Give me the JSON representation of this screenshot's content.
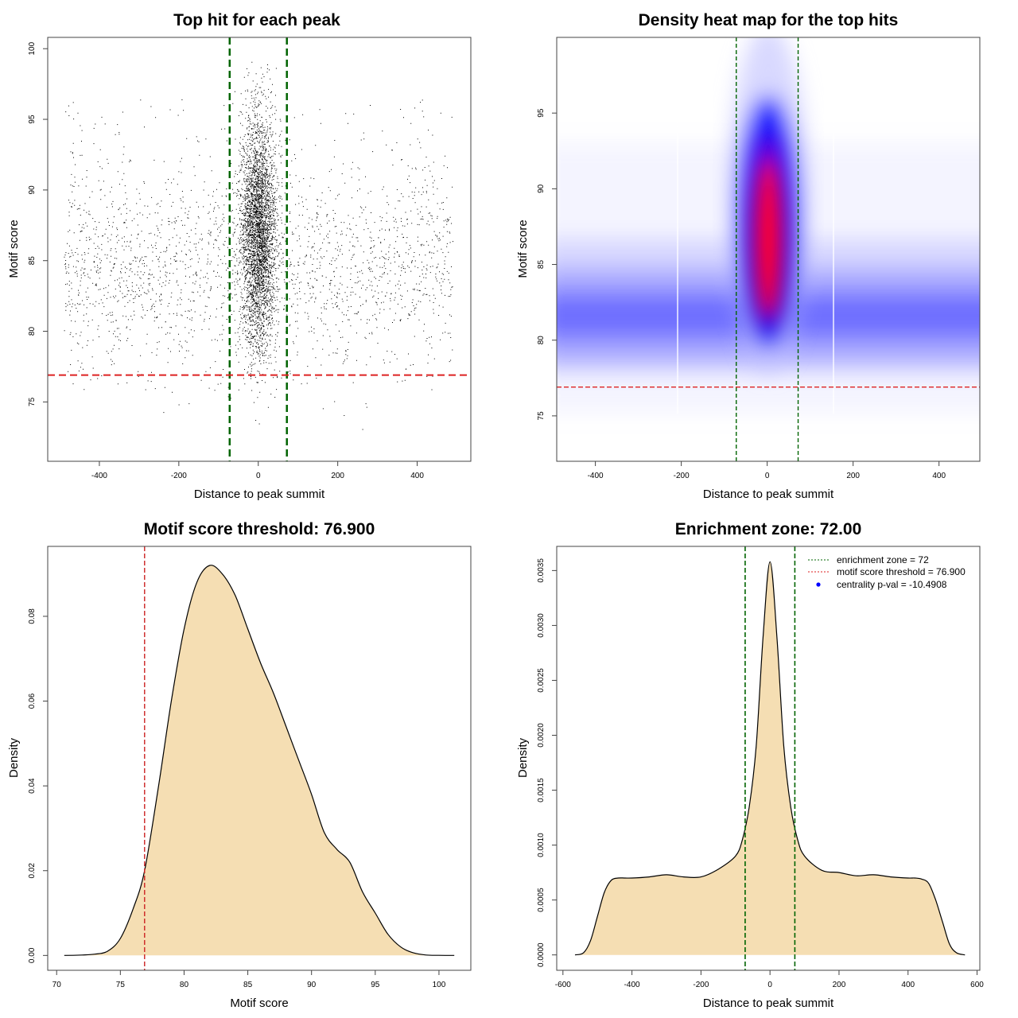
{
  "chart_data": [
    {
      "id": "scatter",
      "type": "scatter",
      "title": "Top hit for each peak",
      "xlabel": "Distance to peak summit",
      "ylabel": "Motif score",
      "xlim": [
        -530,
        535
      ],
      "ylim": [
        70.8,
        100.8
      ],
      "xticks": [
        -400,
        -200,
        0,
        200,
        400
      ],
      "yticks": [
        75,
        80,
        85,
        90,
        95,
        100
      ],
      "vlines": {
        "values": [
          -72,
          72
        ],
        "color": "#006400"
      },
      "hline": {
        "value": 76.9,
        "color": "#dd2222"
      },
      "point_model": {
        "n_background": 19000,
        "background_x_range": [
          -490,
          490
        ],
        "background_score_mode": 82,
        "n_central": 7000,
        "central_x_sd": 22,
        "central_score_mean": 87,
        "central_score_sd": 4
      }
    },
    {
      "id": "heatmap",
      "type": "heatmap",
      "title": "Density heat map for the top hits",
      "xlabel": "Distance to peak summit",
      "ylabel": "Motif score",
      "xlim": [
        -490,
        495
      ],
      "ylim": [
        72,
        100
      ],
      "xticks": [
        -400,
        -200,
        0,
        200,
        400
      ],
      "yticks": [
        75,
        80,
        85,
        90,
        95
      ],
      "vlines": {
        "values": [
          -72,
          72
        ],
        "color": "#006400"
      },
      "hline": {
        "value": 76.9,
        "color": "#dd2222"
      },
      "colors": [
        "#ffffff",
        "#0000ff",
        "#ff0000"
      ]
    },
    {
      "id": "density_score",
      "type": "area",
      "title": "Motif score threshold: 76.900",
      "xlabel": "Motif score",
      "ylabel": "Density",
      "xlim": [
        69.3,
        102.5
      ],
      "ylim": [
        -0.0035,
        0.0965
      ],
      "xticks": [
        70,
        75,
        80,
        85,
        90,
        95,
        100
      ],
      "yticks": [
        0.0,
        0.02,
        0.04,
        0.06,
        0.08
      ],
      "ytick_labels": [
        "0.00",
        "0.02",
        "0.04",
        "0.06",
        "0.08"
      ],
      "vline": {
        "value": 76.9,
        "color": "#cc2222"
      },
      "fill": "#f5deb3",
      "x": [
        70.6,
        72,
        73,
        74,
        75,
        76,
        76.9,
        78,
        79,
        80,
        81,
        82,
        83,
        84,
        85,
        86,
        87,
        88,
        89,
        90,
        91,
        92,
        93,
        94,
        95,
        96,
        97,
        98,
        99,
        100,
        101.2
      ],
      "y": [
        0,
        0.0001,
        0.0003,
        0.001,
        0.004,
        0.011,
        0.02,
        0.04,
        0.06,
        0.077,
        0.088,
        0.092,
        0.09,
        0.085,
        0.077,
        0.069,
        0.062,
        0.054,
        0.046,
        0.038,
        0.029,
        0.025,
        0.022,
        0.015,
        0.01,
        0.005,
        0.002,
        0.0006,
        0.0001,
        2e-05,
        0
      ]
    },
    {
      "id": "density_distance",
      "type": "area",
      "title": "Enrichment zone: 72.00",
      "xlabel": "Distance to peak summit",
      "ylabel": "Density",
      "xlim": [
        -618,
        608
      ],
      "ylim": [
        -0.00014,
        0.00372
      ],
      "xticks": [
        -600,
        -400,
        -200,
        0,
        200,
        400,
        600
      ],
      "yticks": [
        0,
        0.0005,
        0.001,
        0.0015,
        0.002,
        0.0025,
        0.003,
        0.0035
      ],
      "ytick_labels": [
        "0.0000",
        "0.0005",
        "0.0010",
        "0.0015",
        "0.0020",
        "0.0025",
        "0.0030",
        "0.0035"
      ],
      "vlines": {
        "values": [
          -72,
          72
        ],
        "color": "#006400"
      },
      "fill": "#f5deb3",
      "x": [
        -565,
        -540,
        -520,
        -500,
        -480,
        -460,
        -440,
        -420,
        -400,
        -350,
        -300,
        -250,
        -200,
        -150,
        -100,
        -80,
        -60,
        -40,
        -20,
        0,
        20,
        40,
        60,
        80,
        100,
        150,
        200,
        250,
        300,
        350,
        400,
        420,
        440,
        460,
        480,
        500,
        520,
        540,
        565
      ],
      "y": [
        0,
        2e-05,
        0.00013,
        0.00035,
        0.00057,
        0.00068,
        0.0007,
        0.0007,
        0.0007,
        0.00071,
        0.00073,
        0.00071,
        0.00071,
        0.00078,
        0.0009,
        0.00105,
        0.00135,
        0.0019,
        0.0029,
        0.00358,
        0.0029,
        0.0019,
        0.00135,
        0.00105,
        0.0009,
        0.00077,
        0.00075,
        0.00072,
        0.00073,
        0.00071,
        0.0007,
        0.0007,
        0.00069,
        0.00065,
        0.0005,
        0.0003,
        0.0001,
        2e-05,
        0
      ],
      "legend": [
        {
          "label": "enrichment zone = 72",
          "style": "dotted",
          "color": "#006400"
        },
        {
          "label": "motif score threshold = 76.900",
          "style": "dotted",
          "color": "#dd2222"
        },
        {
          "label": "centrality p-val = -10.4908",
          "style": "point",
          "color": "#0000ff"
        }
      ]
    }
  ]
}
